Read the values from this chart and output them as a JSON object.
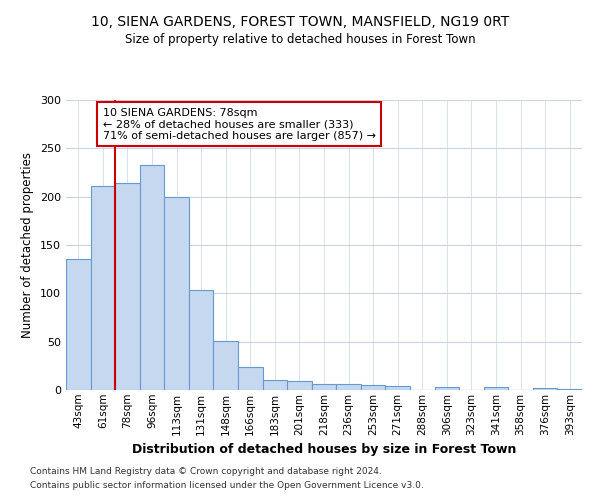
{
  "title_line1": "10, SIENA GARDENS, FOREST TOWN, MANSFIELD, NG19 0RT",
  "title_line2": "Size of property relative to detached houses in Forest Town",
  "xlabel": "Distribution of detached houses by size in Forest Town",
  "ylabel": "Number of detached properties",
  "categories": [
    "43sqm",
    "61sqm",
    "78sqm",
    "96sqm",
    "113sqm",
    "131sqm",
    "148sqm",
    "166sqm",
    "183sqm",
    "201sqm",
    "218sqm",
    "236sqm",
    "253sqm",
    "271sqm",
    "288sqm",
    "306sqm",
    "323sqm",
    "341sqm",
    "358sqm",
    "376sqm",
    "393sqm"
  ],
  "values": [
    136,
    211,
    214,
    233,
    200,
    103,
    51,
    24,
    10,
    9,
    6,
    6,
    5,
    4,
    0,
    3,
    0,
    3,
    0,
    2,
    1
  ],
  "bar_color": "#c5d8f0",
  "bar_edge_color": "#6699cc",
  "highlight_index": 2,
  "highlight_line_color": "#cc0000",
  "annotation_text": "10 SIENA GARDENS: 78sqm\n← 28% of detached houses are smaller (333)\n71% of semi-detached houses are larger (857) →",
  "annotation_box_color": "white",
  "annotation_box_edge": "#cc0000",
  "ylim": [
    0,
    300
  ],
  "yticks": [
    0,
    50,
    100,
    150,
    200,
    250,
    300
  ],
  "footer_line1": "Contains HM Land Registry data © Crown copyright and database right 2024.",
  "footer_line2": "Contains public sector information licensed under the Open Government Licence v3.0.",
  "background_color": "#ffffff",
  "grid_color": "#c8d4e8"
}
